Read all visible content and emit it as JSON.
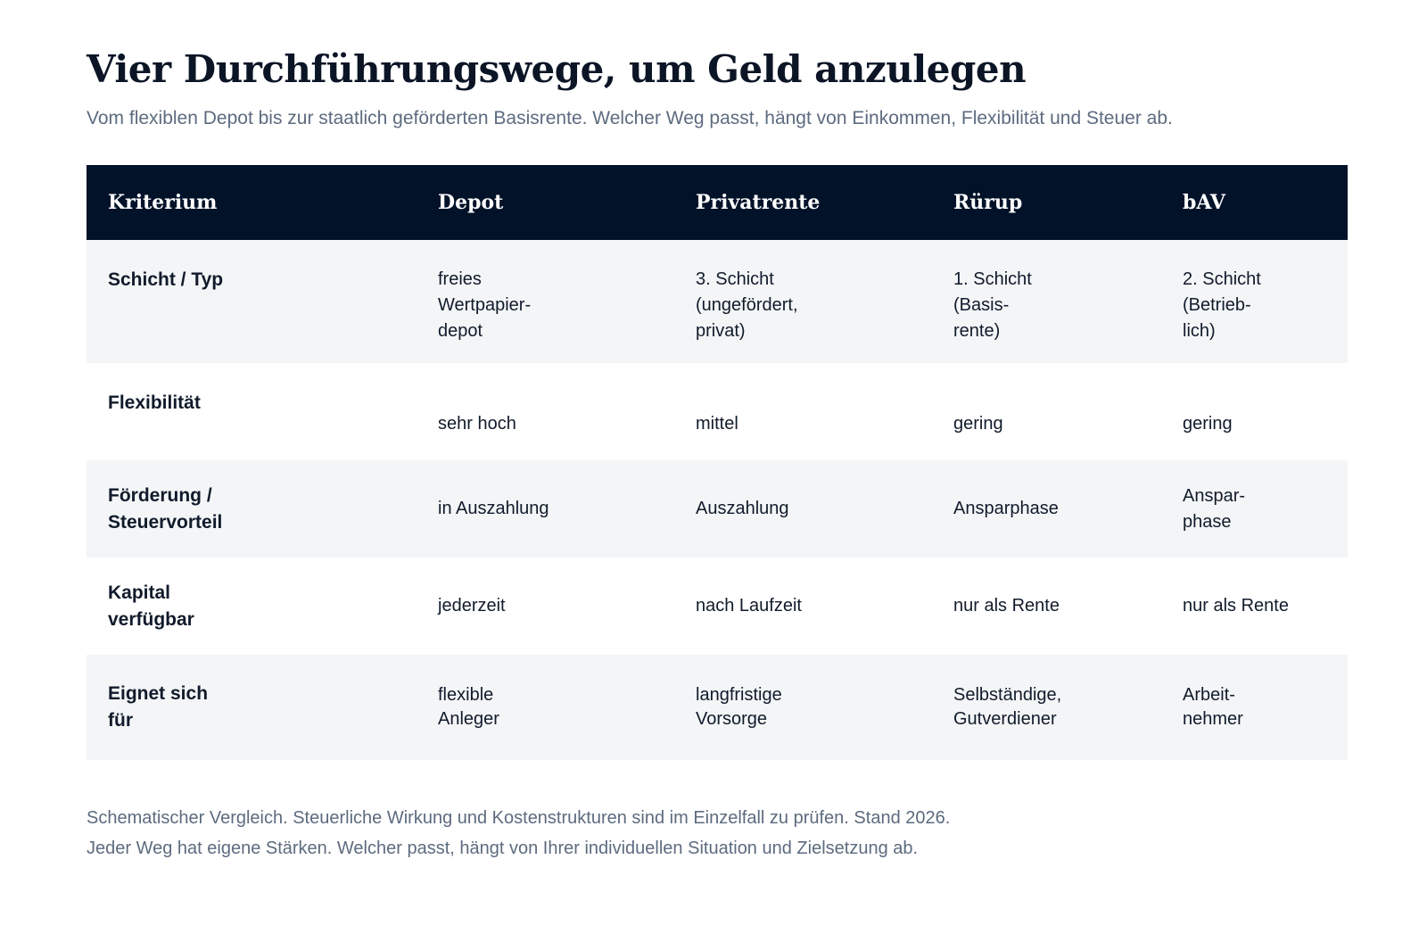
{
  "title": "Vier Durchführungswege, um Geld anzulegen",
  "subtitle": "Vom flexiblen Depot bis zur staatlich geförderten Basisrente. Welcher Weg passt, hängt von Einkommen, Flexibilität und Steuer ab.",
  "table": {
    "headers": [
      "Kriterium",
      "Depot",
      "Privatrente",
      "Rürup",
      "bAV"
    ],
    "rows": [
      {
        "criterion": [
          "Schicht / Typ"
        ],
        "cells": [
          [
            "freies",
            "Wertpapier-",
            "depot"
          ],
          [
            "3. Schicht",
            "(ungefördert,",
            "privat)"
          ],
          [
            "1. Schicht",
            "(Basis-",
            "rente)"
          ],
          [
            "2. Schicht",
            "(Betrieb-",
            "lich)"
          ]
        ]
      },
      {
        "criterion": [
          "Flexibilität"
        ],
        "cells": [
          [
            "sehr hoch"
          ],
          [
            "mittel"
          ],
          [
            "gering"
          ],
          [
            "gering"
          ]
        ]
      },
      {
        "criterion": [
          "Förderung /",
          "Steuervorteil"
        ],
        "cells": [
          [
            "in Auszahlung"
          ],
          [
            "Auszahlung"
          ],
          [
            "Ansparphase"
          ],
          [
            "Anspar-",
            "phase"
          ]
        ]
      },
      {
        "criterion": [
          "Kapital",
          "verfügbar"
        ],
        "cells": [
          [
            "jederzeit"
          ],
          [
            "nach Laufzeit"
          ],
          [
            "nur als Rente"
          ],
          [
            "nur als Rente"
          ]
        ]
      },
      {
        "criterion": [
          "Eignet sich",
          "für"
        ],
        "cells": [
          [
            "flexible",
            "Anleger"
          ],
          [
            "langfristige",
            "Vorsorge"
          ],
          [
            "Selbständige,",
            "Gutverdiener"
          ],
          [
            "Arbeit-",
            "nehmer"
          ]
        ]
      }
    ]
  },
  "footnote": {
    "line1": "Schematischer Vergleich. Steuerliche Wirkung und Kostenstrukturen sind im Einzelfall zu prüfen. Stand 2026.",
    "line2": "Jeder Weg hat eigene Stärken. Welcher passt, hängt von Ihrer individuellen Situation und Zielsetzung ab."
  }
}
